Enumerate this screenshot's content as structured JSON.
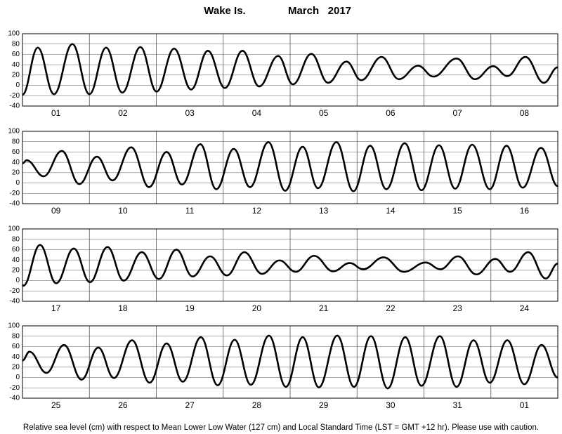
{
  "title": "Wake Is.",
  "date": "March   2017",
  "footnote": "Relative sea level (cm) with respect to Mean Lower Low Water (127 cm) and Local Standard Time (LST = GMT +12 hr). Please use with caution.",
  "chart_data": [
    {
      "type": "line",
      "color": "#000000",
      "grid": true,
      "xlim": [
        0,
        192
      ],
      "ylim": [
        -40,
        100
      ],
      "yticks": [
        -40,
        -20,
        0,
        20,
        40,
        60,
        80,
        100
      ],
      "categories": [
        "01",
        "02",
        "03",
        "04",
        "05",
        "06",
        "07",
        "08"
      ],
      "x": [
        0,
        5.5,
        11.3,
        17.9,
        24,
        30,
        35.8,
        42.3,
        48.1,
        54.4,
        60.5,
        66.5,
        72.6,
        78.9,
        84.9,
        91.7,
        97,
        103.6,
        109.6,
        116.2,
        121.5,
        128.8,
        135,
        141.9,
        147.4,
        155.7,
        162.3,
        168.8,
        173.9,
        180.4,
        187,
        192
      ],
      "values": [
        -18,
        73,
        -17,
        80,
        -17,
        73,
        -14,
        74,
        -12,
        71,
        -8,
        67,
        -5,
        67,
        -2,
        57,
        2,
        61,
        5,
        46,
        10,
        55,
        12,
        38,
        17,
        52,
        12,
        37,
        18,
        55,
        5,
        35
      ]
    },
    {
      "type": "line",
      "color": "#000000",
      "grid": true,
      "xlim": [
        0,
        192
      ],
      "ylim": [
        -40,
        100
      ],
      "yticks": [
        -40,
        -20,
        0,
        20,
        40,
        60,
        80,
        100
      ],
      "categories": [
        "09",
        "10",
        "11",
        "12",
        "13",
        "14",
        "15",
        "16"
      ],
      "x": [
        0,
        1.5,
        7.6,
        14.1,
        20.4,
        26.7,
        32.3,
        39,
        45.4,
        51.7,
        57.2,
        63.8,
        69.5,
        75.8,
        81.6,
        88.2,
        94.2,
        100.5,
        106,
        112.6,
        118.7,
        124.7,
        130.5,
        137.1,
        143.1,
        149.4,
        155.2,
        161.3,
        167.6,
        173.6,
        179.4,
        186,
        192
      ],
      "values": [
        38,
        44,
        13,
        62,
        -2,
        51,
        5,
        69,
        -8,
        60,
        -3,
        75,
        -12,
        66,
        -8,
        79,
        -15,
        70,
        -10,
        79,
        -16,
        72,
        -12,
        77,
        -14,
        73,
        -11,
        74,
        -12,
        72,
        -9,
        68,
        -6
      ]
    },
    {
      "type": "line",
      "color": "#000000",
      "grid": true,
      "xlim": [
        0,
        192
      ],
      "ylim": [
        -40,
        100
      ],
      "yticks": [
        -40,
        -20,
        0,
        20,
        40,
        60,
        80,
        100
      ],
      "categories": [
        "17",
        "18",
        "19",
        "20",
        "21",
        "22",
        "23",
        "24"
      ],
      "x": [
        0,
        0.3,
        6.3,
        12.1,
        18.4,
        24.2,
        30.5,
        36.3,
        42.8,
        48.9,
        55.2,
        61,
        67.3,
        73.3,
        79.6,
        85.9,
        92.2,
        98,
        104.6,
        111.4,
        117.4,
        122.2,
        129.5,
        136.8,
        144.6,
        149.9,
        156.2,
        162.8,
        169.6,
        174.9,
        181.4,
        187.7,
        192
      ],
      "values": [
        -8,
        -10,
        69,
        -5,
        62,
        -3,
        65,
        0,
        55,
        3,
        60,
        8,
        47,
        10,
        55,
        13,
        39,
        17,
        48,
        18,
        34,
        22,
        45,
        17,
        35,
        22,
        47,
        12,
        42,
        17,
        55,
        4,
        33
      ]
    },
    {
      "type": "line",
      "color": "#000000",
      "grid": true,
      "xlim": [
        0,
        192
      ],
      "ylim": [
        -40,
        100
      ],
      "yticks": [
        -40,
        -20,
        0,
        20,
        40,
        60,
        80,
        100
      ],
      "categories": [
        "25",
        "26",
        "27",
        "28",
        "29",
        "30",
        "31",
        "01"
      ],
      "x": [
        0,
        2.5,
        8.6,
        14.9,
        21.2,
        27.2,
        32.8,
        39.3,
        45.6,
        51.7,
        57.5,
        64,
        70,
        76.1,
        81.9,
        88.4,
        94.5,
        100.5,
        106.3,
        112.9,
        118.9,
        125,
        131,
        137.3,
        143.1,
        149.7,
        155.7,
        161.8,
        167.6,
        173.9,
        180,
        186.2,
        192
      ],
      "values": [
        33,
        50,
        9,
        63,
        -4,
        58,
        -1,
        72,
        -10,
        66,
        -8,
        78,
        -15,
        73,
        -14,
        81,
        -18,
        78,
        -19,
        81,
        -18,
        80,
        -21,
        78,
        -16,
        80,
        -18,
        72,
        -10,
        72,
        -13,
        63,
        0
      ]
    }
  ]
}
